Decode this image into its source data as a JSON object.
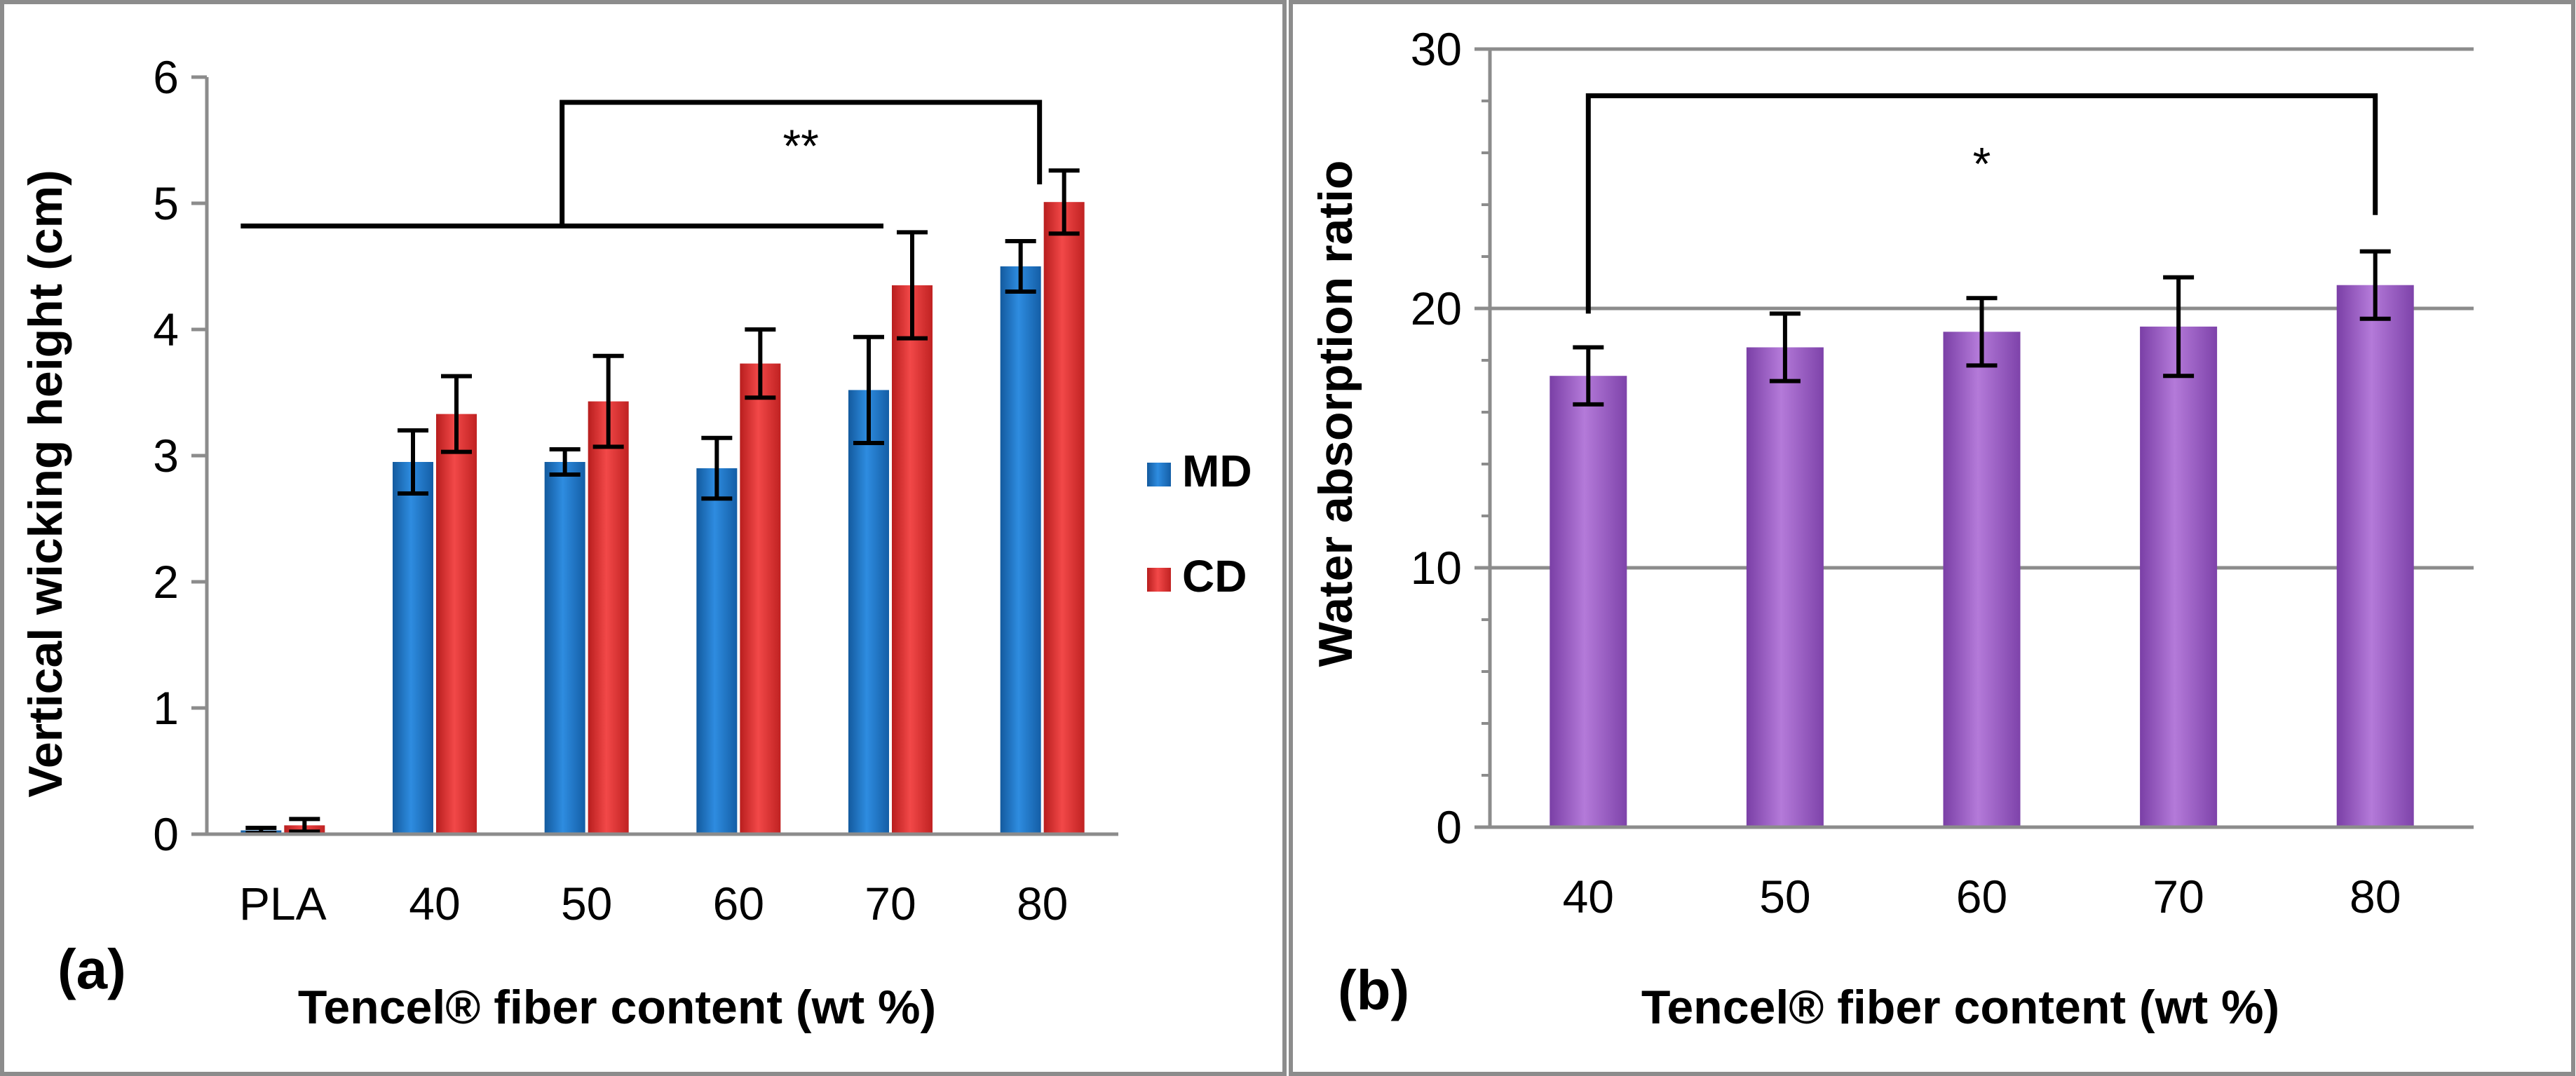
{
  "chart_data": [
    {
      "type": "bar",
      "panel_label": "(a)",
      "title": "",
      "xlabel": "Tencel® fiber content (wt %)",
      "ylabel": "Vertical wicking height (cm)",
      "ylim": [
        0,
        6
      ],
      "yticks": [
        "0",
        "1",
        "2",
        "3",
        "4",
        "5",
        "6"
      ],
      "grid": false,
      "legend_position": "right",
      "categories": [
        "PLA",
        "40",
        "50",
        "60",
        "70",
        "80"
      ],
      "series": [
        {
          "name": "MD",
          "color": "#1e74c6",
          "values": [
            0.03,
            2.95,
            2.95,
            2.9,
            3.52,
            4.5
          ],
          "errors": [
            0.02,
            0.25,
            0.1,
            0.24,
            0.42,
            0.2
          ]
        },
        {
          "name": "CD",
          "color": "#e03030",
          "values": [
            0.07,
            3.33,
            3.43,
            3.73,
            4.35,
            5.01
          ],
          "errors": [
            0.05,
            0.3,
            0.36,
            0.27,
            0.42,
            0.25
          ]
        }
      ],
      "annotations": [
        {
          "text": "**",
          "type": "significance-bracket",
          "from_category": "PLA",
          "to_category": "80"
        }
      ]
    },
    {
      "type": "bar",
      "panel_label": "(b)",
      "title": "",
      "xlabel": "Tencel® fiber content (wt %)",
      "ylabel": "Water absorption ratio",
      "ylim": [
        0,
        30
      ],
      "yticks": [
        "0",
        "10",
        "20",
        "30"
      ],
      "grid": true,
      "categories": [
        "40",
        "50",
        "60",
        "70",
        "80"
      ],
      "series": [
        {
          "name": "Water absorption ratio",
          "color": "#9a5bc2",
          "values": [
            17.4,
            18.5,
            19.1,
            19.3,
            20.9
          ],
          "errors": [
            1.1,
            1.3,
            1.3,
            1.9,
            1.3
          ]
        }
      ],
      "annotations": [
        {
          "text": "*",
          "type": "significance-bracket",
          "from_category": "40",
          "to_category": "80"
        }
      ]
    }
  ]
}
